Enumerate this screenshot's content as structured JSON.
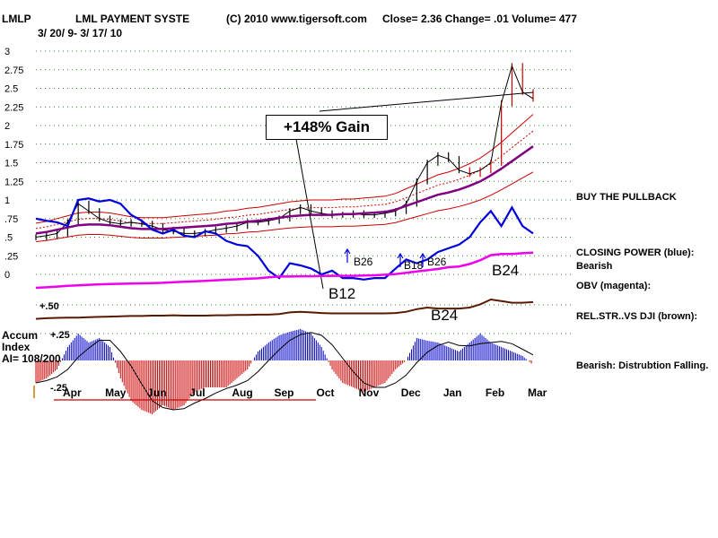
{
  "header": {
    "ticker": "LMLP",
    "company": "LML PAYMENT SYSTE",
    "copyright": "(C) 2010 www.tigersoft.com",
    "stats": "Close=  2.36  Change= .01 Volume= 477",
    "dates": "3/ 20/ 9-  3/ 17/ 10"
  },
  "gain_label": "+148% Gain",
  "notes": {
    "buy": "BUY THE PULLBACK",
    "cp_title": "CLOSING POWER (blue):",
    "cp_value": "Bearish",
    "obv": "OBV (magenta):",
    "relstr": "REL.STR..VS DJI (brown):",
    "accum": "Bearish: Distrubtion Falling."
  },
  "accum_label": {
    "line1": "Accum",
    "line2": "Index",
    "line3": "AI= 108/200"
  },
  "colors": {
    "price": "#000000",
    "closing_power": "#0000dd",
    "obv": "#ee00ee",
    "relstr": "#5a1a00",
    "ma": "#800080",
    "band": "#cc0000",
    "accum_pos": "#0000cc",
    "accum_neg": "#cc0000",
    "signal": "#cc0000",
    "grid": "#2a8a2a"
  },
  "chart_data": {
    "type": "line",
    "price_axis": {
      "ticks": [
        "3",
        "2.75",
        "2.5",
        "2.25",
        "2",
        "1.75",
        "1.5",
        "1.25",
        "1",
        ".75",
        ".5",
        ".25",
        "0"
      ],
      "ylim": [
        0,
        3
      ]
    },
    "months": [
      "Apr",
      "May",
      "Jun",
      "Jul",
      "Aug",
      "Sep",
      "Oct",
      "Nov",
      "Dec",
      "Jan",
      "Feb",
      "Mar"
    ],
    "price_close": [
      0.5,
      0.52,
      0.55,
      0.7,
      0.95,
      0.85,
      0.75,
      0.7,
      0.68,
      0.7,
      0.68,
      0.65,
      0.6,
      0.58,
      0.55,
      0.55,
      0.57,
      0.6,
      0.62,
      0.65,
      0.7,
      0.7,
      0.72,
      0.75,
      0.85,
      0.9,
      0.85,
      0.82,
      0.8,
      0.8,
      0.82,
      0.8,
      0.8,
      0.82,
      0.85,
      0.95,
      1.25,
      1.5,
      1.6,
      1.55,
      1.4,
      1.35,
      1.4,
      1.5,
      2.3,
      2.8,
      2.45,
      2.36
    ],
    "moving_avg": [
      0.55,
      0.57,
      0.6,
      0.63,
      0.66,
      0.67,
      0.67,
      0.66,
      0.64,
      0.62,
      0.61,
      0.61,
      0.61,
      0.62,
      0.63,
      0.64,
      0.65,
      0.66,
      0.68,
      0.69,
      0.71,
      0.72,
      0.74,
      0.76,
      0.78,
      0.79,
      0.8,
      0.8,
      0.8,
      0.81,
      0.81,
      0.82,
      0.83,
      0.84,
      0.87,
      0.92,
      0.97,
      1.02,
      1.07,
      1.1,
      1.14,
      1.19,
      1.25,
      1.33,
      1.42,
      1.52,
      1.62,
      1.72
    ],
    "closing_power": [
      0.75,
      0.72,
      0.7,
      0.65,
      1.0,
      1.02,
      0.98,
      1.0,
      0.95,
      0.8,
      0.72,
      0.6,
      0.55,
      0.6,
      0.52,
      0.5,
      0.58,
      0.55,
      0.45,
      0.4,
      0.38,
      0.25,
      0.05,
      -0.05,
      0.15,
      0.12,
      0.08,
      0.0,
      0.05,
      -0.05,
      -0.05,
      -0.07,
      -0.05,
      -0.05,
      0.08,
      0.2,
      0.15,
      0.2,
      0.3,
      0.35,
      0.4,
      0.5,
      0.7,
      0.85,
      0.65,
      0.9,
      0.65,
      0.55
    ],
    "obv": [
      0.5,
      0.52,
      0.55,
      0.58,
      0.6,
      0.62,
      0.64,
      0.65,
      0.66,
      0.67,
      0.68,
      0.69,
      0.7,
      0.72,
      0.74,
      0.76,
      0.78,
      0.8,
      0.82,
      0.84,
      0.86,
      0.88,
      0.92,
      0.95,
      0.95,
      0.96,
      0.96,
      0.97,
      0.98,
      0.98,
      0.98,
      0.99,
      1.0,
      1.02,
      1.05,
      1.1,
      1.15,
      1.2,
      1.25,
      1.32,
      1.35,
      1.45,
      1.6,
      1.8,
      1.85,
      1.85,
      1.88,
      1.9
    ],
    "relstr": [
      0.4,
      0.42,
      0.43,
      0.44,
      0.44,
      0.45,
      0.46,
      0.47,
      0.48,
      0.49,
      0.49,
      0.5,
      0.5,
      0.51,
      0.5,
      0.5,
      0.5,
      0.51,
      0.51,
      0.52,
      0.52,
      0.53,
      0.53,
      0.55,
      0.6,
      0.62,
      0.6,
      0.58,
      0.57,
      0.57,
      0.57,
      0.57,
      0.57,
      0.57,
      0.58,
      0.62,
      0.7,
      0.75,
      0.72,
      0.72,
      0.72,
      0.75,
      0.85,
      1.0,
      0.95,
      0.9,
      0.9,
      0.92
    ],
    "relstr_axis": {
      "label": "+.50"
    },
    "accum_index": [
      -0.25,
      -0.2,
      -0.1,
      0.15,
      0.3,
      0.2,
      0.25,
      0.15,
      -0.2,
      -0.45,
      -0.55,
      -0.6,
      -0.5,
      -0.55,
      -0.5,
      -0.35,
      -0.3,
      -0.3,
      -0.3,
      -0.2,
      -0.1,
      0.1,
      0.2,
      0.28,
      0.32,
      0.35,
      0.3,
      0.15,
      -0.1,
      -0.25,
      -0.3,
      -0.35,
      -0.3,
      -0.25,
      -0.1,
      0.0,
      0.25,
      0.22,
      0.2,
      0.15,
      0.1,
      0.2,
      0.3,
      0.2,
      0.15,
      0.1,
      0.05,
      -0.05
    ],
    "accum_axis": {
      "top_label": "+.25",
      "bottom_label": "-.25"
    },
    "signals": [
      "B12",
      "B26",
      "B18",
      "B26",
      "B24",
      "B24"
    ],
    "title": "LML PAYMENT SYSTE",
    "grid": true
  }
}
